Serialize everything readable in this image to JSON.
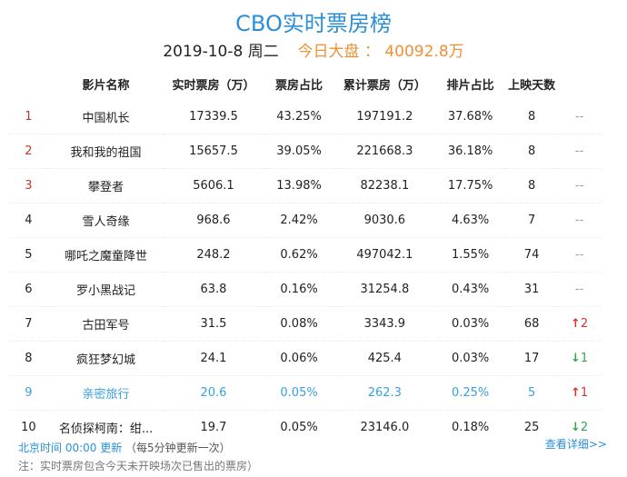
{
  "header": {
    "title": "CBO实时票房榜",
    "date": "2019-10-8",
    "weekday": "周二",
    "dapan_label": "今日大盘 ：",
    "dapan_value": "40092.8万"
  },
  "table": {
    "headers": [
      "影片名称",
      "实时票房（万）",
      "票房占比",
      "累计票房（万）",
      "排片占比",
      "上映天数"
    ],
    "rows": [
      {
        "rank": "1",
        "name": "中国机长",
        "realtime": "17339.5",
        "share": "43.25%",
        "cumulative": "197191.2",
        "seat": "37.68%",
        "days": "8",
        "change": "--",
        "dir": "none"
      },
      {
        "rank": "2",
        "name": "我和我的祖国",
        "realtime": "15657.5",
        "share": "39.05%",
        "cumulative": "221668.3",
        "seat": "36.18%",
        "days": "8",
        "change": "--",
        "dir": "none"
      },
      {
        "rank": "3",
        "name": "攀登者",
        "realtime": "5606.1",
        "share": "13.98%",
        "cumulative": "82238.1",
        "seat": "17.75%",
        "days": "8",
        "change": "--",
        "dir": "none"
      },
      {
        "rank": "4",
        "name": "雪人奇缘",
        "realtime": "968.6",
        "share": "2.42%",
        "cumulative": "9030.6",
        "seat": "4.63%",
        "days": "7",
        "change": "--",
        "dir": "none"
      },
      {
        "rank": "5",
        "name": "哪吒之魔童降世",
        "realtime": "248.2",
        "share": "0.62%",
        "cumulative": "497042.1",
        "seat": "1.55%",
        "days": "74",
        "change": "--",
        "dir": "none"
      },
      {
        "rank": "6",
        "name": "罗小黑战记",
        "realtime": "63.8",
        "share": "0.16%",
        "cumulative": "31254.8",
        "seat": "0.43%",
        "days": "31",
        "change": "--",
        "dir": "none"
      },
      {
        "rank": "7",
        "name": "古田军号",
        "realtime": "31.5",
        "share": "0.08%",
        "cumulative": "3343.9",
        "seat": "0.03%",
        "days": "68",
        "change": "2",
        "dir": "up"
      },
      {
        "rank": "8",
        "name": "疯狂梦幻城",
        "realtime": "24.1",
        "share": "0.06%",
        "cumulative": "425.4",
        "seat": "0.03%",
        "days": "17",
        "change": "1",
        "dir": "down"
      },
      {
        "rank": "9",
        "name": "亲密旅行",
        "realtime": "20.6",
        "share": "0.05%",
        "cumulative": "262.3",
        "seat": "0.25%",
        "days": "5",
        "change": "1",
        "dir": "up"
      },
      {
        "rank": "10",
        "name": "名侦探柯南：绀...",
        "realtime": "19.7",
        "share": "0.05%",
        "cumulative": "23146.0",
        "seat": "0.18%",
        "days": "25",
        "change": "2",
        "dir": "down"
      }
    ]
  },
  "footer": {
    "time_prefix": "北京时间 00:00 更新",
    "time_suffix": "（每5分钟更新一次）",
    "note": "注：实时票房包含今天未开映场次已售出的票房）",
    "detail_link": "查看详细>>"
  },
  "colors": {
    "accent_blue": "#2b8fd6",
    "dapan_orange": "#f09035",
    "top_rank_red": "#c0392b",
    "up_red": "#d9342b",
    "down_green": "#2fa84f"
  },
  "icons": {
    "up": "arrow-up-icon",
    "down": "arrow-down-icon"
  }
}
